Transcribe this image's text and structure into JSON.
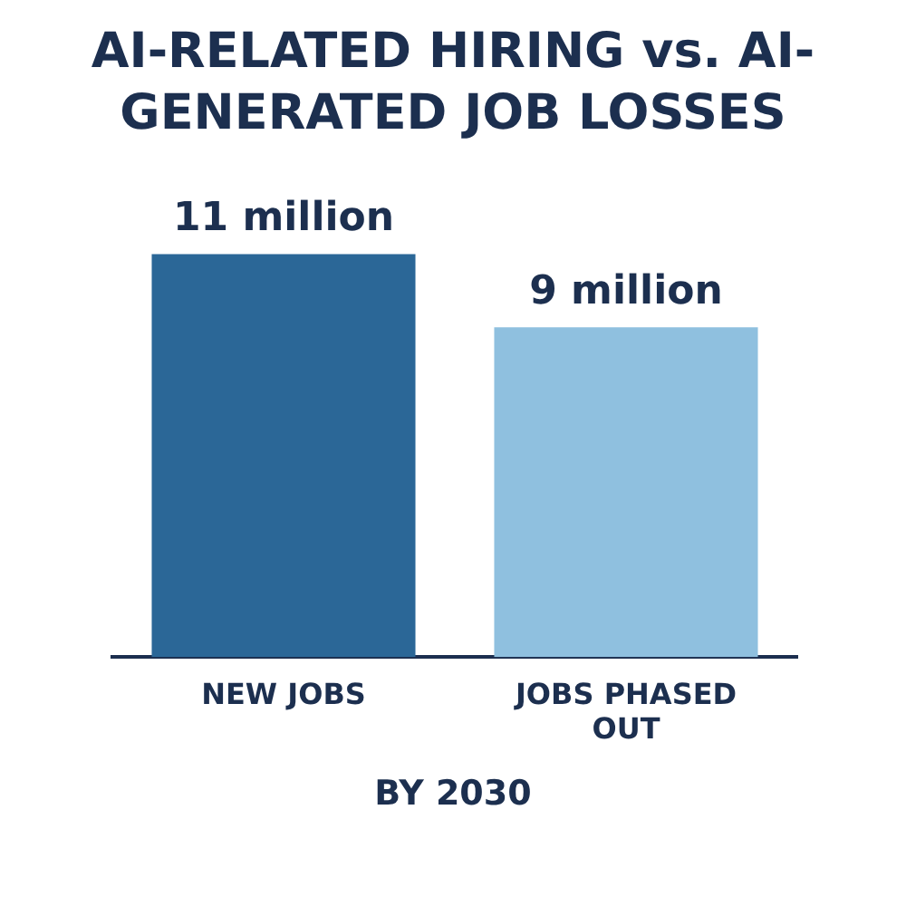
{
  "chart_data": {
    "type": "bar",
    "title": "AI-RELATED HIRING vs. AI-GENERATED JOB LOSSES",
    "categories": [
      "NEW JOBS",
      "JOBS PHASED OUT"
    ],
    "values": [
      11,
      9
    ],
    "colors": [
      "#2b6797",
      "#8fc0df"
    ],
    "value_labels": [
      "11 million",
      "9 million"
    ],
    "annotations": [
      "BY 2030"
    ],
    "grid": false,
    "legend": false
  }
}
